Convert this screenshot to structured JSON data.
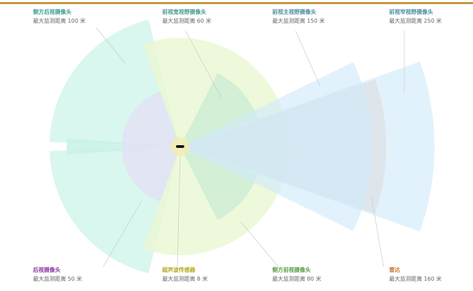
{
  "sensors": [
    {
      "name": "侧方后视摄像头",
      "range": "最大监测距离 100 米"
    },
    {
      "name": "前视宽视野摄像头",
      "range": "最大监测距离 60 米"
    },
    {
      "name": "前视主视野摄像头",
      "range": "最大监测距离 150 米"
    },
    {
      "name": "前视窄视野摄像头",
      "range": "最大监测距离 250 米"
    },
    {
      "name": "后视摄像头",
      "range": "最大监测距离 50 米"
    },
    {
      "name": "超声波传感器",
      "range": "最大监测距离 8 米"
    },
    {
      "name": "侧方前视摄像头",
      "range": "最大监测距离 80 米"
    },
    {
      "name": "雷达",
      "range": "最大监测距离 160 米"
    }
  ]
}
